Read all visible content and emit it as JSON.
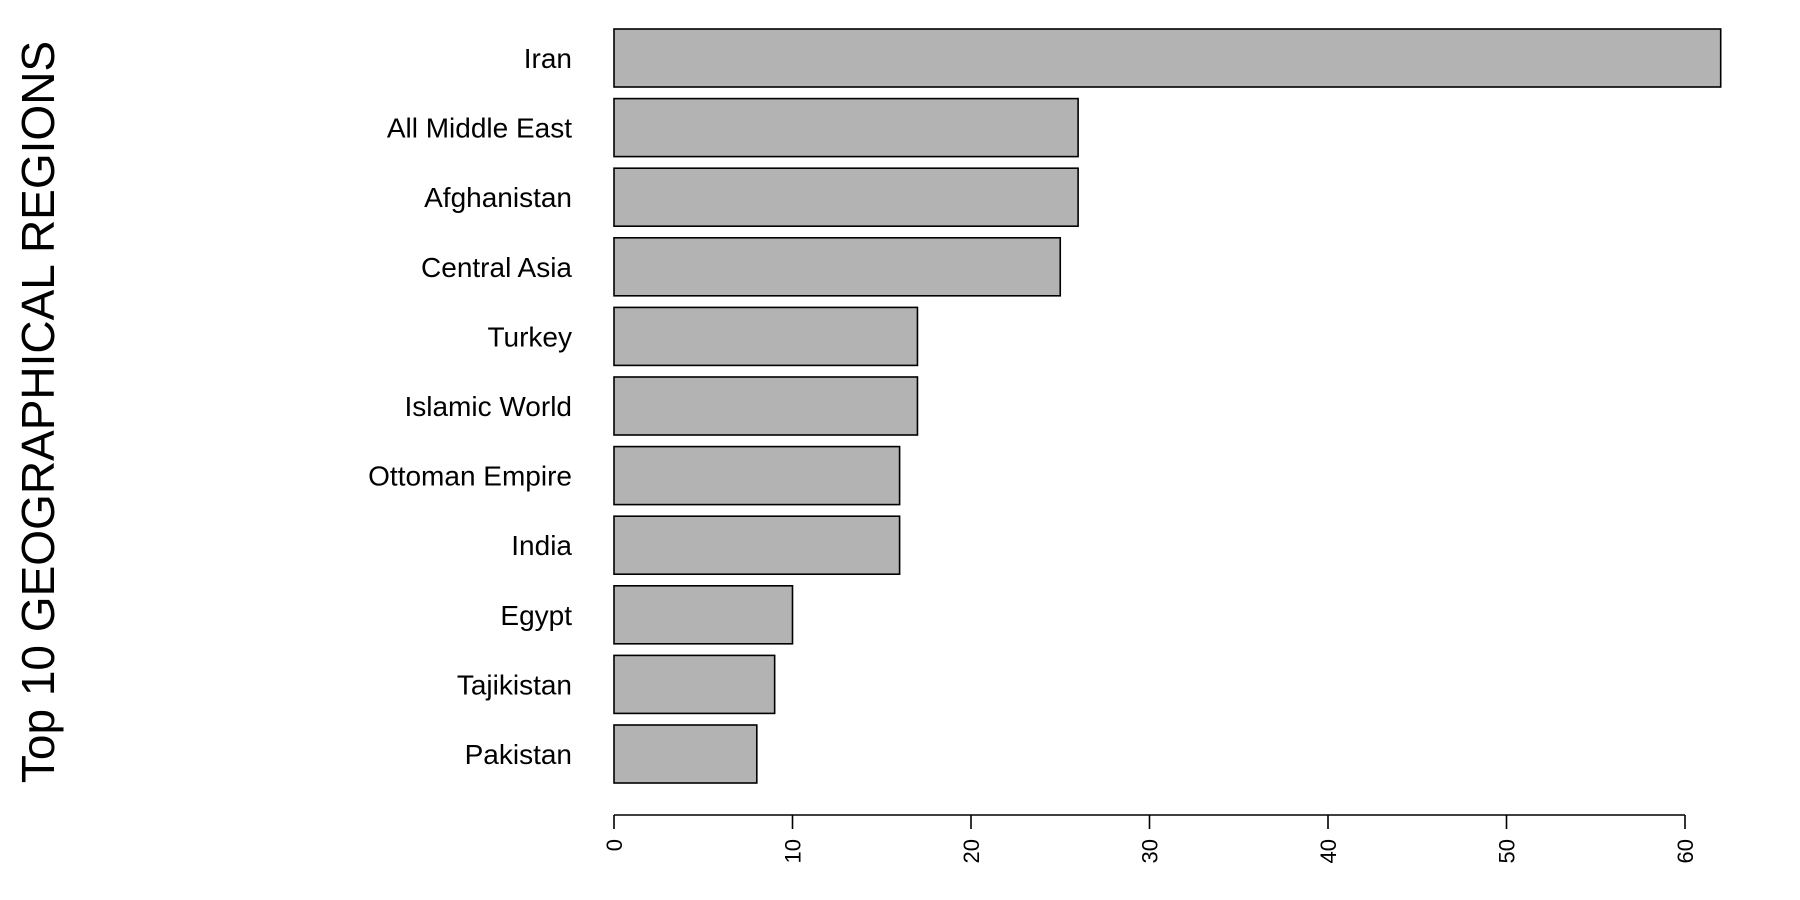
{
  "chart_data": {
    "type": "bar",
    "orientation": "horizontal",
    "ylabel": "Top 10 GEOGRAPHICAL REGIONS",
    "xlabel": "",
    "categories": [
      "Iran",
      "All Middle East",
      "Afghanistan",
      "Central Asia",
      "Turkey",
      "Islamic World",
      "Ottoman Empire",
      "India",
      "Egypt",
      "Tajikistan",
      "Pakistan"
    ],
    "values": [
      62,
      26,
      26,
      25,
      17,
      17,
      16,
      16,
      10,
      9,
      8
    ],
    "xlim": [
      0,
      60
    ],
    "xticks": [
      "0",
      "10",
      "20",
      "30",
      "40",
      "50",
      "60"
    ],
    "bar_color": "#b3b3b3",
    "grid": false,
    "legend": "none"
  }
}
